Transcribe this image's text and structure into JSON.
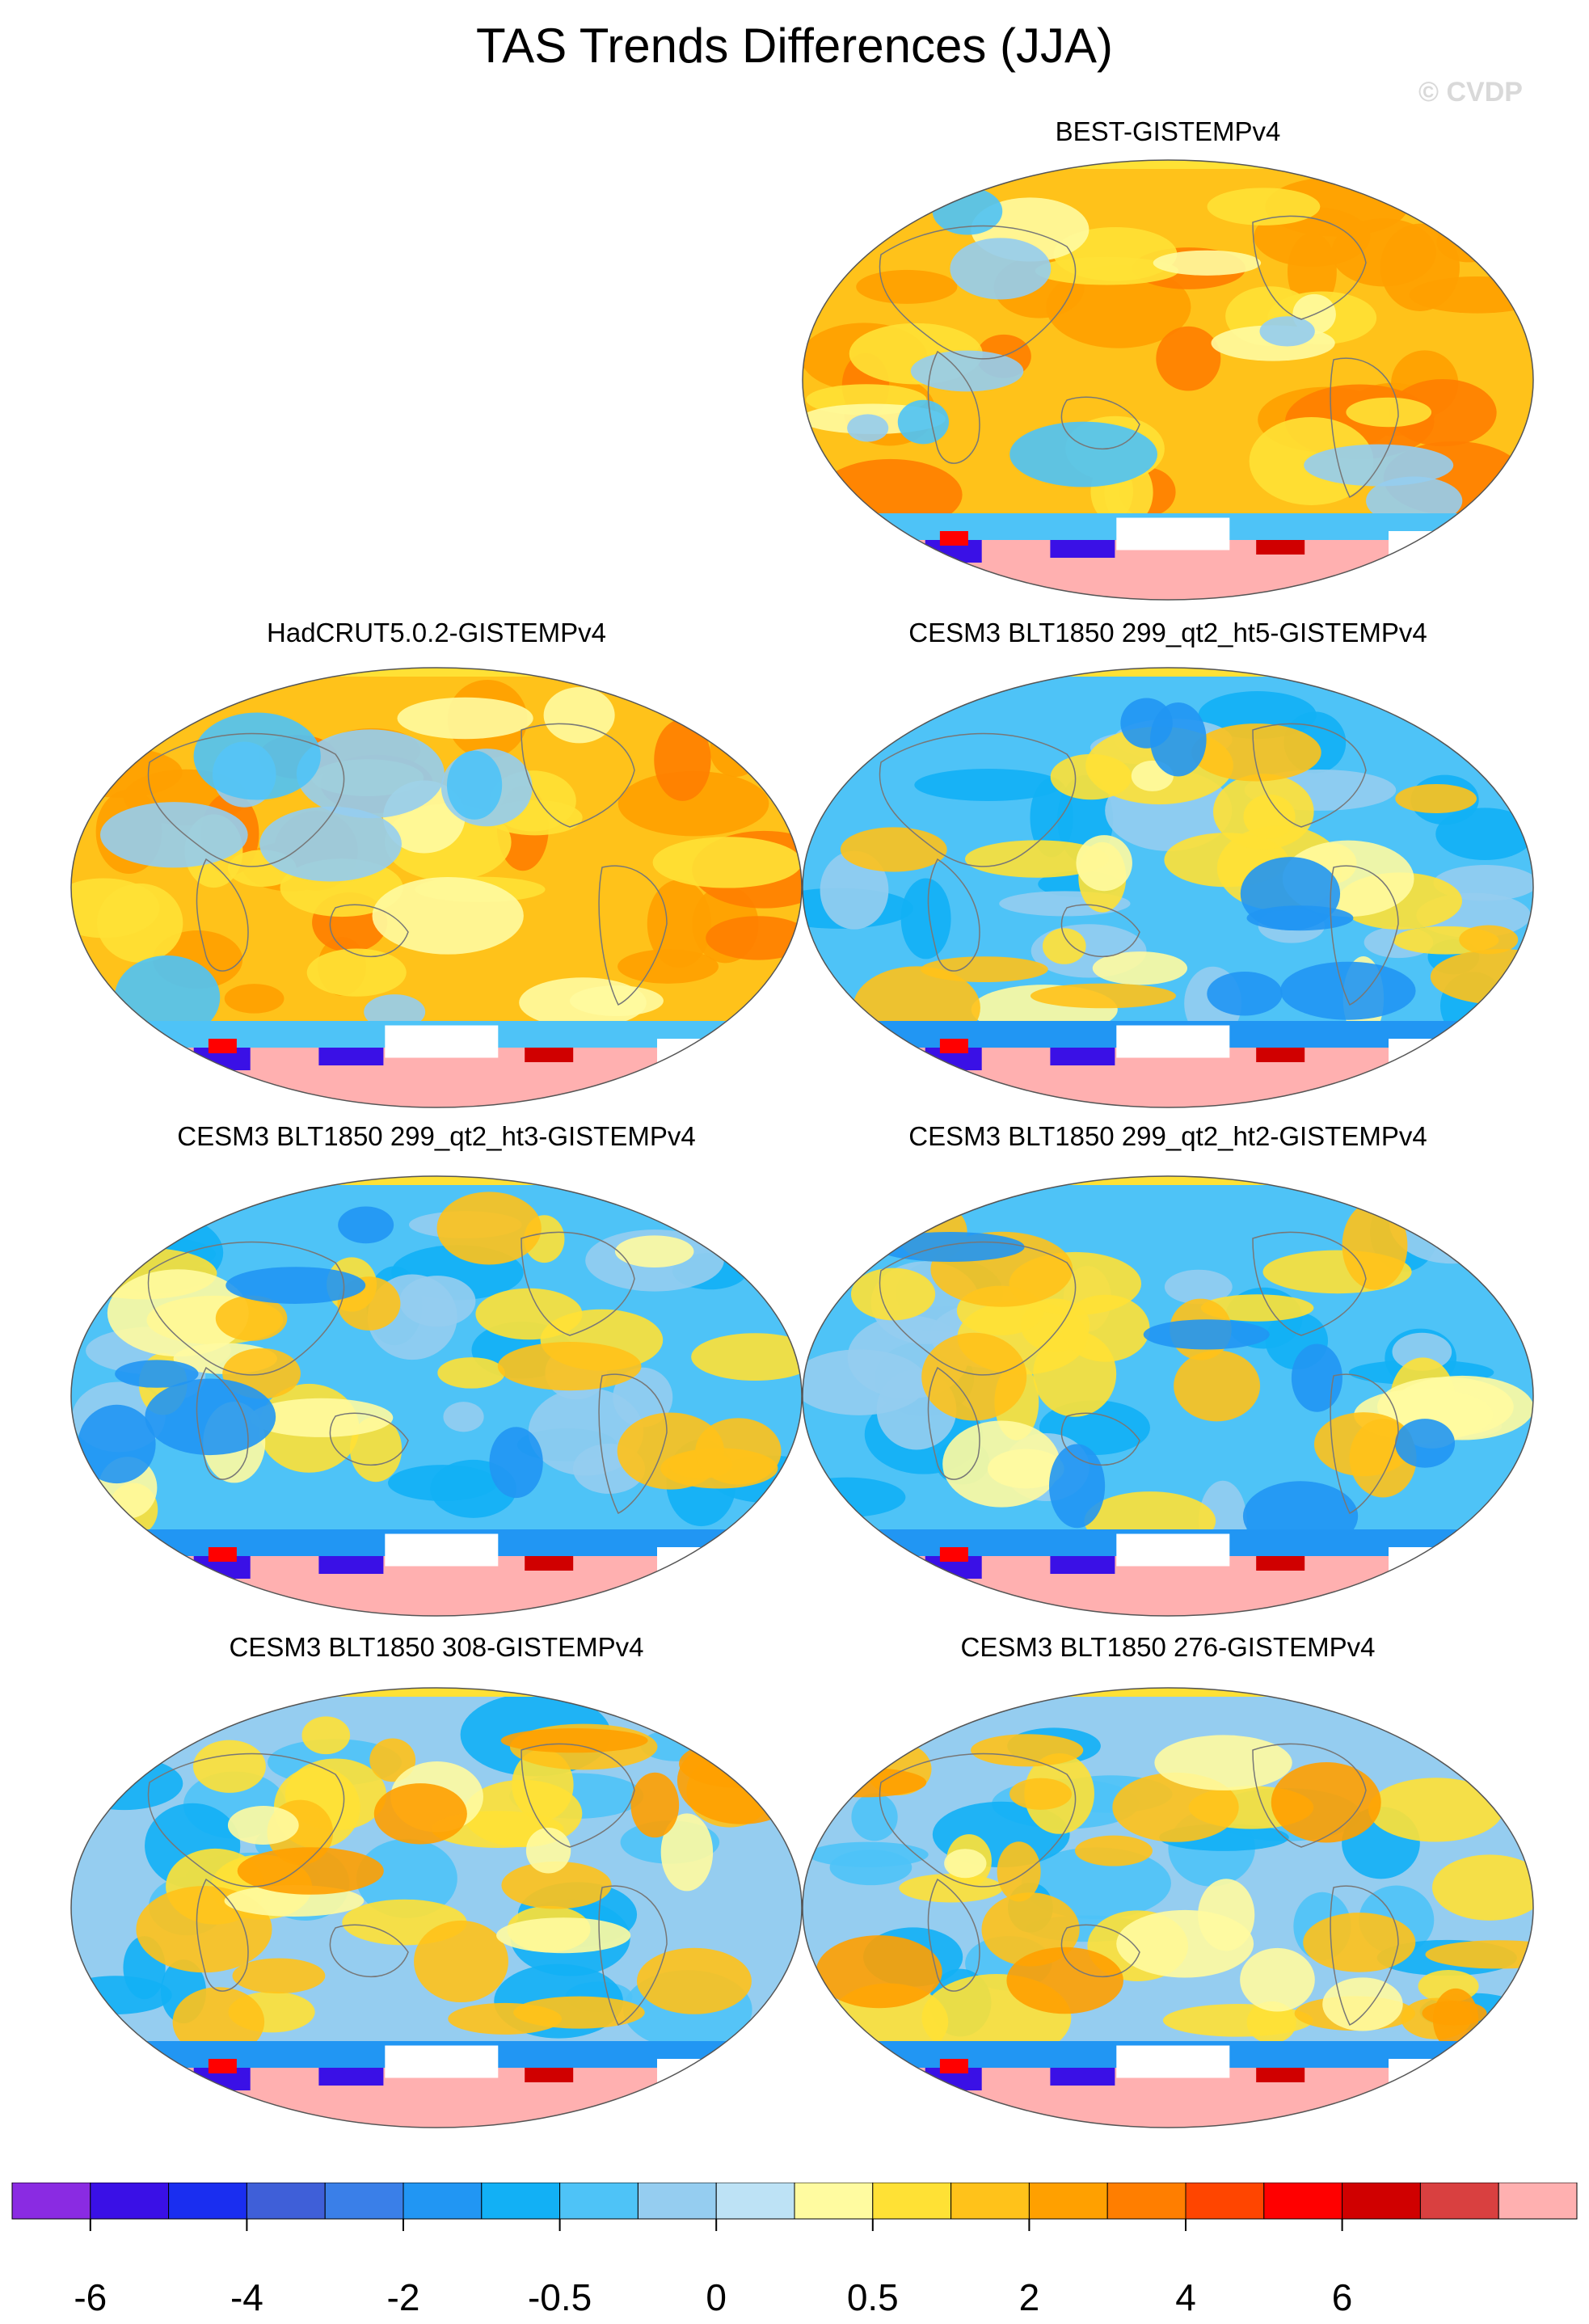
{
  "title": "TAS Trends Differences (JJA)",
  "copyright": "© CVDP",
  "panels": [
    {
      "title": "BEST-GISTEMPv4",
      "row": 0,
      "col": 1,
      "style": "warm"
    },
    {
      "title": "HadCRUT5.0.2-GISTEMPv4",
      "row": 1,
      "col": 0,
      "style": "warm"
    },
    {
      "title": "CESM3 BLT1850 299_qt2_ht5-GISTEMPv4",
      "row": 1,
      "col": 1,
      "style": "cool"
    },
    {
      "title": "CESM3 BLT1850 299_qt2_ht3-GISTEMPv4",
      "row": 2,
      "col": 0,
      "style": "cool"
    },
    {
      "title": "CESM3 BLT1850 299_qt2_ht2-GISTEMPv4",
      "row": 2,
      "col": 1,
      "style": "cool"
    },
    {
      "title": "CESM3 BLT1850 308-GISTEMPv4",
      "row": 3,
      "col": 0,
      "style": "mixed"
    },
    {
      "title": "CESM3 BLT1850 276-GISTEMPv4",
      "row": 3,
      "col": 1,
      "style": "mixed"
    }
  ],
  "colorbar": {
    "colors": [
      "#8a2be2",
      "#3a10e6",
      "#1a2ef0",
      "#3f5fd8",
      "#3a7fe8",
      "#2196f3",
      "#12b0f5",
      "#4ec3f7",
      "#95cdf0",
      "#bde2f5",
      "#fffba0",
      "#ffe135",
      "#ffc21a",
      "#ffa000",
      "#ff7e00",
      "#ff4500",
      "#ff0000",
      "#d00000",
      "#d94040",
      "#ffb0b0"
    ],
    "labels": [
      "-6",
      "-4",
      "-2",
      "-0.5",
      "0",
      "0.5",
      "2",
      "4",
      "6"
    ]
  }
}
